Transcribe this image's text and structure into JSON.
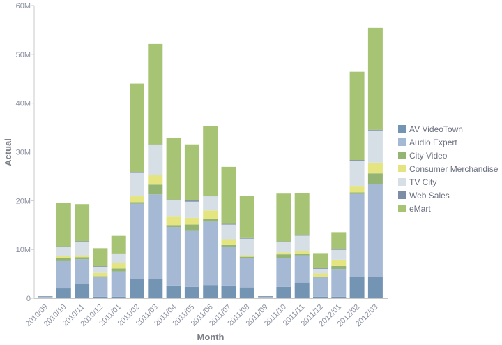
{
  "chart_data": {
    "type": "bar",
    "stacked": true,
    "xlabel": "Month",
    "ylabel": "Actual",
    "ylim": [
      0,
      60000000
    ],
    "yticks": [
      0,
      10000000,
      20000000,
      30000000,
      40000000,
      50000000,
      60000000
    ],
    "ytick_labels": [
      "0",
      "10M",
      "20M",
      "30M",
      "40M",
      "50M",
      "60M"
    ],
    "grid": false,
    "legend_position": "right",
    "categories": [
      "2010/09",
      "2010/10",
      "2010/11",
      "2010/12",
      "2011/01",
      "2011/02",
      "2011/03",
      "2011/04",
      "2011/05",
      "2011/06",
      "2011/07",
      "2011/08",
      "2011/09",
      "2011/10",
      "2011/11",
      "2011/12",
      "2012/01",
      "2012/02",
      "2012/03"
    ],
    "series": [
      {
        "name": "AV VideoTown",
        "color": "#7394b3",
        "values": [
          0.2,
          2.0,
          2.9,
          0.3,
          0.3,
          3.9,
          4.0,
          2.6,
          2.3,
          2.7,
          2.6,
          2.2,
          0.15,
          2.3,
          3.2,
          0.3,
          0.3,
          4.3,
          4.4
        ]
      },
      {
        "name": "Audio Expert",
        "color": "#a5b9d4",
        "values": [
          0.1,
          5.6,
          5.1,
          4.1,
          5.2,
          15.5,
          17.3,
          12.0,
          11.5,
          13.0,
          8.0,
          6.0,
          0.15,
          6.0,
          5.6,
          4.0,
          5.7,
          17.1,
          19.0
        ]
      },
      {
        "name": "City Video",
        "color": "#94b473",
        "values": [
          0,
          0.6,
          0.4,
          0.1,
          0.6,
          0.3,
          2.0,
          0.4,
          1.3,
          0.6,
          0.3,
          0.3,
          0,
          0.7,
          0.3,
          0.1,
          0.6,
          0.3,
          2.2
        ]
      },
      {
        "name": "Consumer Merchandise",
        "color": "#e4e580",
        "values": [
          0,
          0.4,
          0.4,
          0.7,
          1.1,
          1.2,
          2.0,
          1.7,
          1.4,
          1.7,
          1.2,
          0.3,
          0,
          0.4,
          0.6,
          0.7,
          1.3,
          1.2,
          2.2
        ]
      },
      {
        "name": "TV City",
        "color": "#d6dee6",
        "values": [
          0.05,
          1.9,
          2.8,
          1.3,
          1.9,
          4.8,
          6.1,
          3.4,
          3.3,
          2.9,
          3.0,
          3.5,
          0.1,
          2.2,
          3.2,
          1.0,
          2.1,
          5.3,
          6.6
        ]
      },
      {
        "name": "Web Sales",
        "color": "#7b8ea6",
        "values": [
          0.05,
          0.15,
          0.1,
          0.06,
          0.09,
          0.12,
          0.14,
          0.14,
          0.24,
          0.14,
          0.14,
          0.04,
          0.03,
          0.05,
          0.05,
          0.05,
          0.05,
          0.14,
          0.14
        ]
      },
      {
        "name": "eMart",
        "color": "#a6c473",
        "values": [
          0,
          8.85,
          7.6,
          3.7,
          3.6,
          18.2,
          20.6,
          12.7,
          11.5,
          14.3,
          11.7,
          8.6,
          0,
          9.8,
          8.6,
          3.1,
          3.5,
          18.1,
          20.9
        ]
      }
    ],
    "value_unit_multiplier": 1000000
  }
}
